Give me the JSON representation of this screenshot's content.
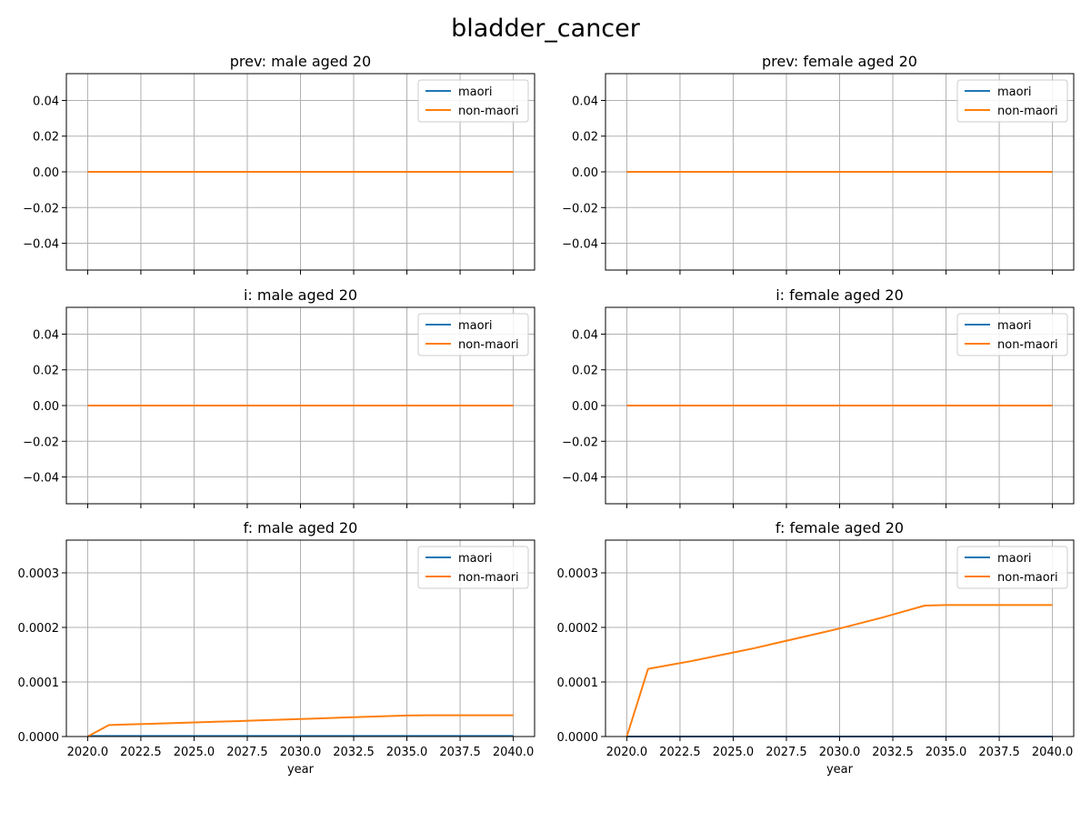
{
  "figure": {
    "title": "bladder_cancer"
  },
  "colors": {
    "maori": "#1f77b4",
    "non_maori": "#ff7f0e",
    "grid": "#b0b0b0",
    "axes": "#000000"
  },
  "chart_data": [
    {
      "type": "line",
      "title": "prev: male aged 20",
      "xlabel": "",
      "ylabel": "",
      "xlim": [
        2019,
        2041
      ],
      "ylim": [
        -0.055,
        0.055
      ],
      "xticks": [
        2020.0,
        2022.5,
        2025.0,
        2027.5,
        2030.0,
        2032.5,
        2035.0,
        2037.5,
        2040.0
      ],
      "xtick_labels": [],
      "yticks": [
        -0.04,
        -0.02,
        0.0,
        0.02,
        0.04
      ],
      "ytick_labels": [
        "−0.04",
        "−0.02",
        "0.00",
        "0.02",
        "0.04"
      ],
      "grid": true,
      "legend": "upper right",
      "x": [
        2020,
        2021,
        2022,
        2023,
        2024,
        2025,
        2026,
        2027,
        2028,
        2029,
        2030,
        2031,
        2032,
        2033,
        2034,
        2035,
        2036,
        2037,
        2038,
        2039,
        2040
      ],
      "series": [
        {
          "name": "maori",
          "color": "#1f77b4",
          "values": [
            0,
            0,
            0,
            0,
            0,
            0,
            0,
            0,
            0,
            0,
            0,
            0,
            0,
            0,
            0,
            0,
            0,
            0,
            0,
            0,
            0
          ]
        },
        {
          "name": "non-maori",
          "color": "#ff7f0e",
          "values": [
            0,
            0,
            0,
            0,
            0,
            0,
            0,
            0,
            0,
            0,
            0,
            0,
            0,
            0,
            0,
            0,
            0,
            0,
            0,
            0,
            0
          ]
        }
      ]
    },
    {
      "type": "line",
      "title": "prev: female aged 20",
      "xlabel": "",
      "ylabel": "",
      "xlim": [
        2019,
        2041
      ],
      "ylim": [
        -0.055,
        0.055
      ],
      "xticks": [
        2020.0,
        2022.5,
        2025.0,
        2027.5,
        2030.0,
        2032.5,
        2035.0,
        2037.5,
        2040.0
      ],
      "xtick_labels": [],
      "yticks": [
        -0.04,
        -0.02,
        0.0,
        0.02,
        0.04
      ],
      "ytick_labels": [
        "−0.04",
        "−0.02",
        "0.00",
        "0.02",
        "0.04"
      ],
      "grid": true,
      "legend": "upper right",
      "x": [
        2020,
        2021,
        2022,
        2023,
        2024,
        2025,
        2026,
        2027,
        2028,
        2029,
        2030,
        2031,
        2032,
        2033,
        2034,
        2035,
        2036,
        2037,
        2038,
        2039,
        2040
      ],
      "series": [
        {
          "name": "maori",
          "color": "#1f77b4",
          "values": [
            0,
            0,
            0,
            0,
            0,
            0,
            0,
            0,
            0,
            0,
            0,
            0,
            0,
            0,
            0,
            0,
            0,
            0,
            0,
            0,
            0
          ]
        },
        {
          "name": "non-maori",
          "color": "#ff7f0e",
          "values": [
            0,
            0,
            0,
            0,
            0,
            0,
            0,
            0,
            0,
            0,
            0,
            0,
            0,
            0,
            0,
            0,
            0,
            0,
            0,
            0,
            0
          ]
        }
      ]
    },
    {
      "type": "line",
      "title": "i: male aged 20",
      "xlabel": "",
      "ylabel": "",
      "xlim": [
        2019,
        2041
      ],
      "ylim": [
        -0.055,
        0.055
      ],
      "xticks": [
        2020.0,
        2022.5,
        2025.0,
        2027.5,
        2030.0,
        2032.5,
        2035.0,
        2037.5,
        2040.0
      ],
      "xtick_labels": [],
      "yticks": [
        -0.04,
        -0.02,
        0.0,
        0.02,
        0.04
      ],
      "ytick_labels": [
        "−0.04",
        "−0.02",
        "0.00",
        "0.02",
        "0.04"
      ],
      "grid": true,
      "legend": "upper right",
      "x": [
        2020,
        2021,
        2022,
        2023,
        2024,
        2025,
        2026,
        2027,
        2028,
        2029,
        2030,
        2031,
        2032,
        2033,
        2034,
        2035,
        2036,
        2037,
        2038,
        2039,
        2040
      ],
      "series": [
        {
          "name": "maori",
          "color": "#1f77b4",
          "values": [
            0,
            0,
            0,
            0,
            0,
            0,
            0,
            0,
            0,
            0,
            0,
            0,
            0,
            0,
            0,
            0,
            0,
            0,
            0,
            0,
            0
          ]
        },
        {
          "name": "non-maori",
          "color": "#ff7f0e",
          "values": [
            0,
            0,
            0,
            0,
            0,
            0,
            0,
            0,
            0,
            0,
            0,
            0,
            0,
            0,
            0,
            0,
            0,
            0,
            0,
            0,
            0
          ]
        }
      ]
    },
    {
      "type": "line",
      "title": "i: female aged 20",
      "xlabel": "",
      "ylabel": "",
      "xlim": [
        2019,
        2041
      ],
      "ylim": [
        -0.055,
        0.055
      ],
      "xticks": [
        2020.0,
        2022.5,
        2025.0,
        2027.5,
        2030.0,
        2032.5,
        2035.0,
        2037.5,
        2040.0
      ],
      "xtick_labels": [],
      "yticks": [
        -0.04,
        -0.02,
        0.0,
        0.02,
        0.04
      ],
      "ytick_labels": [
        "−0.04",
        "−0.02",
        "0.00",
        "0.02",
        "0.04"
      ],
      "grid": true,
      "legend": "upper right",
      "x": [
        2020,
        2021,
        2022,
        2023,
        2024,
        2025,
        2026,
        2027,
        2028,
        2029,
        2030,
        2031,
        2032,
        2033,
        2034,
        2035,
        2036,
        2037,
        2038,
        2039,
        2040
      ],
      "series": [
        {
          "name": "maori",
          "color": "#1f77b4",
          "values": [
            0,
            0,
            0,
            0,
            0,
            0,
            0,
            0,
            0,
            0,
            0,
            0,
            0,
            0,
            0,
            0,
            0,
            0,
            0,
            0,
            0
          ]
        },
        {
          "name": "non-maori",
          "color": "#ff7f0e",
          "values": [
            0,
            0,
            0,
            0,
            0,
            0,
            0,
            0,
            0,
            0,
            0,
            0,
            0,
            0,
            0,
            0,
            0,
            0,
            0,
            0,
            0
          ]
        }
      ]
    },
    {
      "type": "line",
      "title": "f: male aged 20",
      "xlabel": "year",
      "ylabel": "",
      "xlim": [
        2019,
        2041
      ],
      "ylim": [
        0,
        0.00036
      ],
      "xticks": [
        2020.0,
        2022.5,
        2025.0,
        2027.5,
        2030.0,
        2032.5,
        2035.0,
        2037.5,
        2040.0
      ],
      "xtick_labels": [
        "2020.0",
        "2022.5",
        "2025.0",
        "2027.5",
        "2030.0",
        "2032.5",
        "2035.0",
        "2037.5",
        "2040.0"
      ],
      "yticks": [
        0,
        0.0001,
        0.0002,
        0.0003
      ],
      "ytick_labels": [
        "0.0000",
        "0.0001",
        "0.0002",
        "0.0003"
      ],
      "grid": true,
      "legend": "upper right",
      "x": [
        2020,
        2021,
        2022,
        2023,
        2024,
        2025,
        2026,
        2027,
        2028,
        2029,
        2030,
        2031,
        2032,
        2033,
        2034,
        2035,
        2036,
        2037,
        2038,
        2039,
        2040
      ],
      "series": [
        {
          "name": "maori",
          "color": "#1f77b4",
          "values": [
            1e-06,
            1e-06,
            1e-06,
            1e-06,
            1e-06,
            1e-06,
            1e-06,
            1e-06,
            1e-06,
            1e-06,
            1e-06,
            1e-06,
            1e-06,
            1e-06,
            1e-06,
            1e-06,
            1e-06,
            1e-06,
            1e-06,
            1e-06,
            1e-06
          ]
        },
        {
          "name": "non-maori",
          "color": "#ff7f0e",
          "values": [
            0,
            2.1e-05,
            2.22e-05,
            2.34e-05,
            2.46e-05,
            2.58e-05,
            2.7e-05,
            2.82e-05,
            2.95e-05,
            3.08e-05,
            3.21e-05,
            3.34e-05,
            3.47e-05,
            3.6e-05,
            3.73e-05,
            3.86e-05,
            3.9e-05,
            3.9e-05,
            3.9e-05,
            3.9e-05,
            3.9e-05
          ]
        }
      ]
    },
    {
      "type": "line",
      "title": "f: female aged 20",
      "xlabel": "year",
      "ylabel": "",
      "xlim": [
        2019,
        2041
      ],
      "ylim": [
        0,
        0.00036
      ],
      "xticks": [
        2020.0,
        2022.5,
        2025.0,
        2027.5,
        2030.0,
        2032.5,
        2035.0,
        2037.5,
        2040.0
      ],
      "xtick_labels": [
        "2020.0",
        "2022.5",
        "2025.0",
        "2027.5",
        "2030.0",
        "2032.5",
        "2035.0",
        "2037.5",
        "2040.0"
      ],
      "yticks": [
        0,
        0.0001,
        0.0002,
        0.0003
      ],
      "ytick_labels": [
        "0.0000",
        "0.0001",
        "0.0002",
        "0.0003"
      ],
      "grid": true,
      "legend": "upper right",
      "x": [
        2020,
        2021,
        2022,
        2023,
        2024,
        2025,
        2026,
        2027,
        2028,
        2029,
        2030,
        2031,
        2032,
        2033,
        2034,
        2035,
        2036,
        2037,
        2038,
        2039,
        2040
      ],
      "series": [
        {
          "name": "maori",
          "color": "#1f77b4",
          "values": [
            0,
            0,
            0,
            0,
            0,
            0,
            0,
            0,
            0,
            0,
            0,
            0,
            0,
            0,
            0,
            0,
            0,
            0,
            0,
            0,
            0
          ]
        },
        {
          "name": "non-maori",
          "color": "#ff7f0e",
          "values": [
            0,
            0.000124,
            0.000131,
            0.000138,
            0.000146,
            0.000154,
            0.000162,
            0.000171,
            0.00018,
            0.000189,
            0.000198,
            0.000208,
            0.000218,
            0.000229,
            0.00024,
            0.000241,
            0.000241,
            0.000241,
            0.000241,
            0.000241,
            0.000241
          ]
        }
      ]
    }
  ]
}
